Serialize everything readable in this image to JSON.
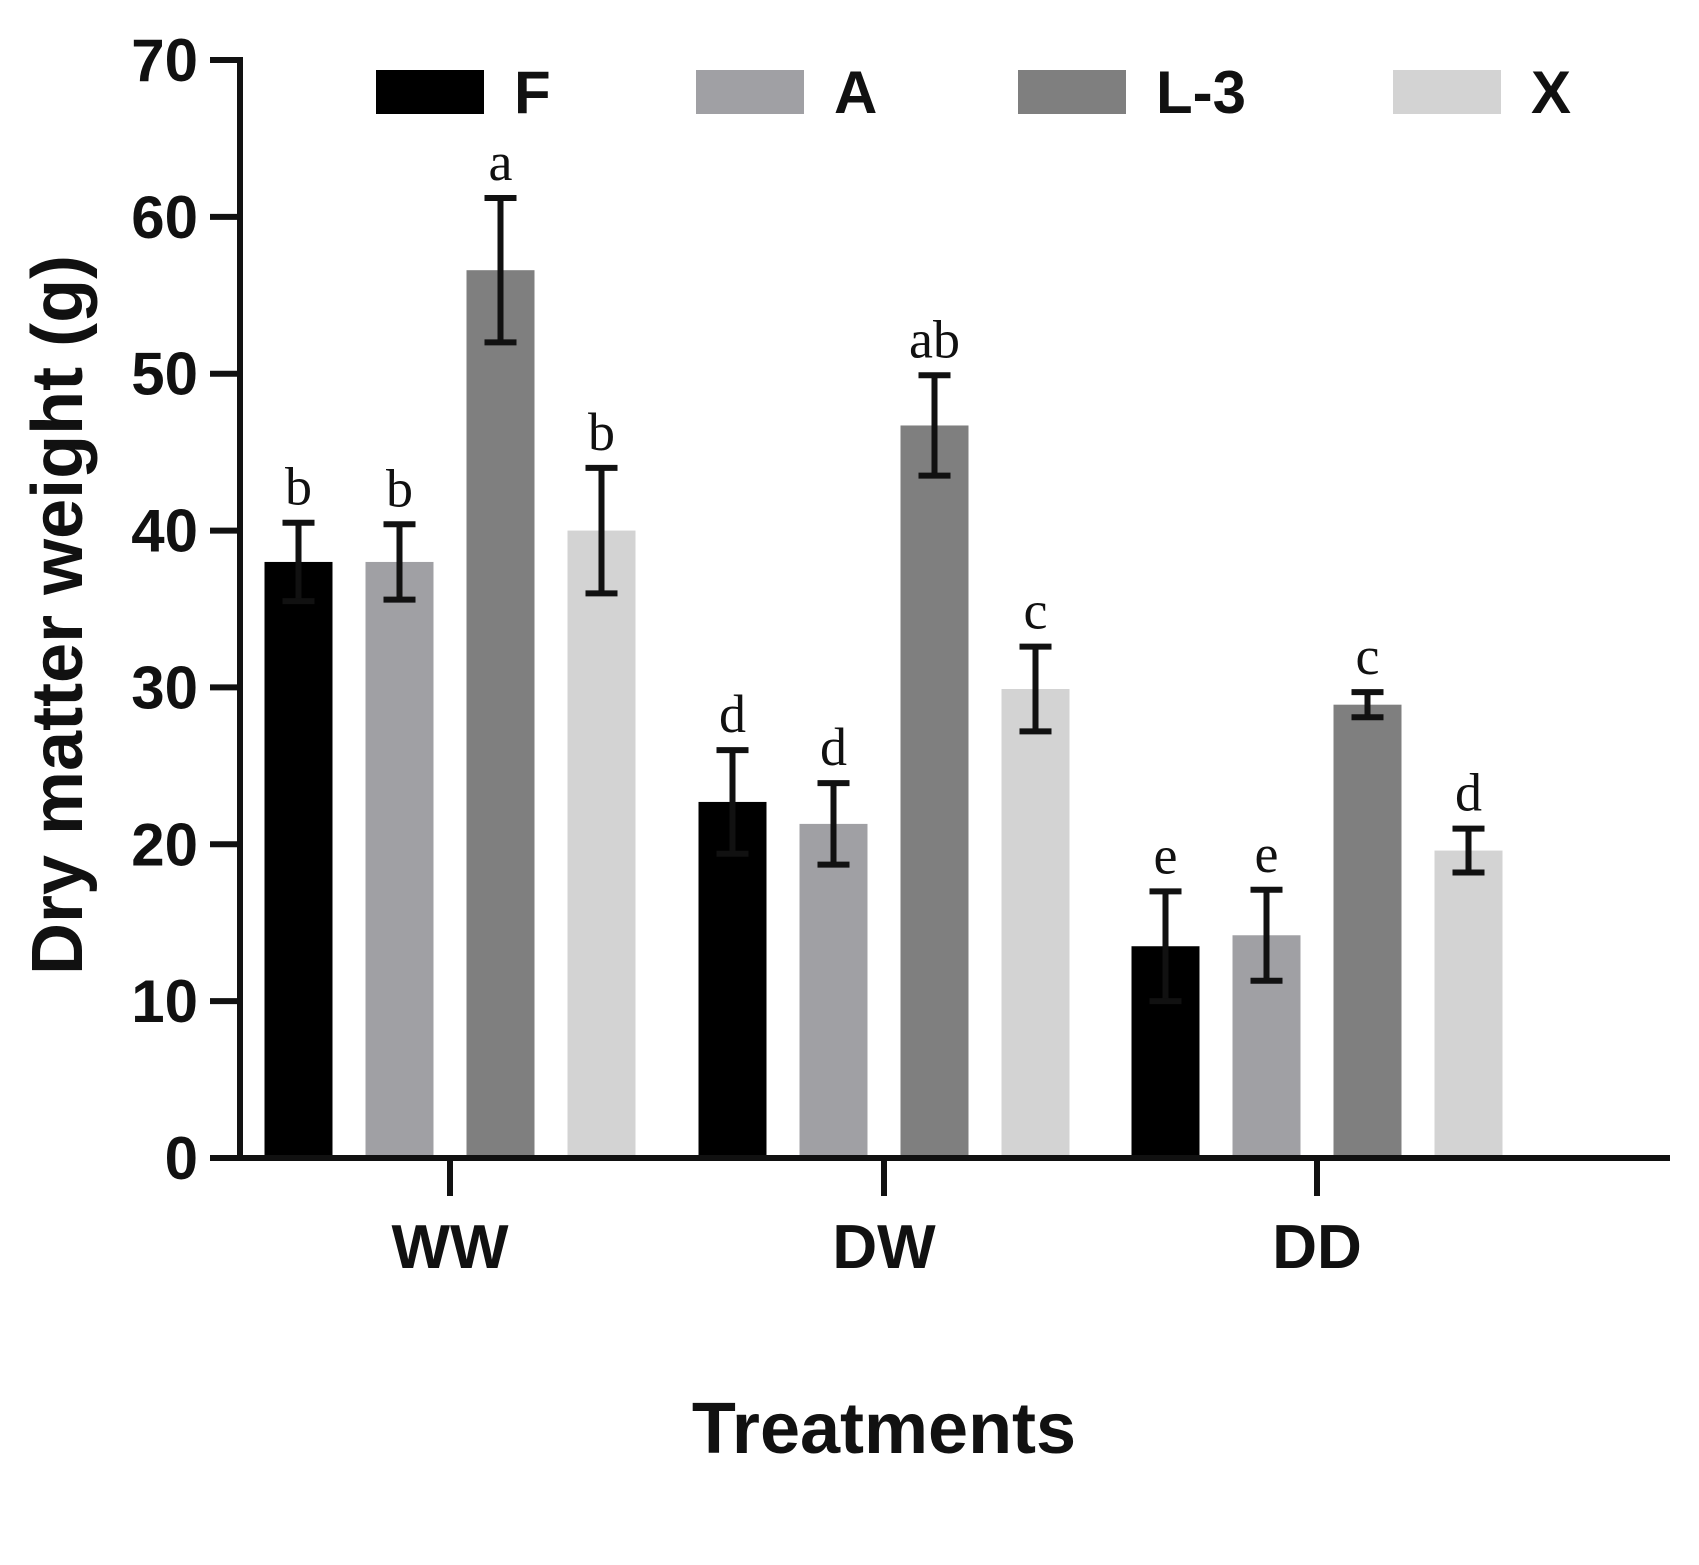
{
  "chart_data": {
    "type": "bar",
    "title": "",
    "xlabel": "Treatments",
    "ylabel": "Dry matter weight (g)",
    "ylim": [
      0,
      70
    ],
    "yticks": [
      "0",
      "10",
      "20",
      "30",
      "40",
      "50",
      "60",
      "70"
    ],
    "categories": [
      "WW",
      "DW",
      "DD"
    ],
    "legend_position": "top",
    "series": [
      {
        "name": "F",
        "color": "#000000",
        "values": [
          38.0,
          22.7,
          13.5
        ],
        "errors": [
          2.5,
          3.3,
          3.5
        ],
        "letters": [
          "b",
          "d",
          "e"
        ]
      },
      {
        "name": "A",
        "color": "#a0a0a4",
        "values": [
          38.0,
          21.3,
          14.2
        ],
        "errors": [
          2.4,
          2.6,
          2.9
        ],
        "letters": [
          "b",
          "d",
          "e"
        ]
      },
      {
        "name": "L-3",
        "color": "#7f7f7f",
        "values": [
          56.6,
          46.7,
          28.9
        ],
        "errors": [
          4.6,
          3.2,
          0.8
        ],
        "letters": [
          "a",
          "ab",
          "c"
        ]
      },
      {
        "name": "X",
        "color": "#d3d3d3",
        "values": [
          40.0,
          29.9,
          19.6
        ],
        "errors": [
          4.0,
          2.7,
          1.4
        ],
        "letters": [
          "b",
          "c",
          "d"
        ]
      }
    ]
  }
}
